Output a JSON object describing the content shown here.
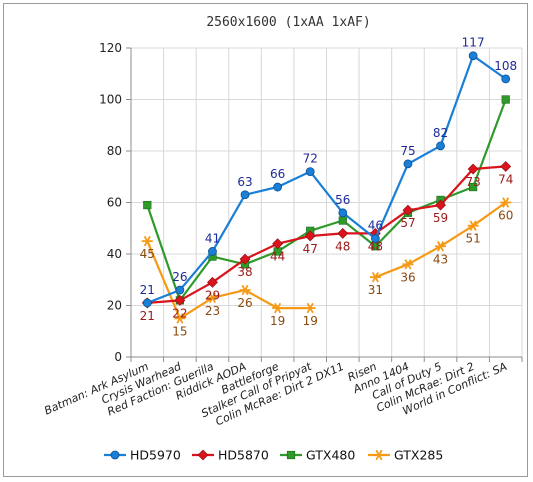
{
  "chart_data": {
    "type": "line",
    "title": "2560x1600 (1xAA 1xAF)",
    "xlabel": "",
    "ylabel": "",
    "ylim": [
      0,
      120
    ],
    "yticks": [
      0,
      20,
      40,
      60,
      80,
      100,
      120
    ],
    "grid": true,
    "legend_position": "bottom",
    "categories": [
      "Batman: Ark Asylum",
      "Crysis Warhead",
      "Red Faction: Guerilla",
      "Riddick AODA",
      "Battleforge",
      "Stalker Call of Pripyat",
      "Colin McRae: Dirt 2 DX11",
      "Risen",
      "Anno 1404",
      "Call of Duty 5",
      "Colin McRae: Dirt 2",
      "World in Conflict: SA"
    ],
    "series": [
      {
        "name": "HD5970",
        "color": "#1a7fd6",
        "marker": "circle",
        "label_color": "#1f2a99",
        "values": [
          21,
          26,
          41,
          63,
          66,
          72,
          56,
          46,
          75,
          82,
          117,
          108
        ],
        "labels": [
          "21",
          "26",
          "41",
          "63",
          "66",
          "72",
          "56",
          "46",
          "75",
          "82",
          "117",
          "108"
        ]
      },
      {
        "name": "HD5870",
        "color": "#d9141c",
        "marker": "diamond",
        "label_color": "#9b1a1a",
        "values": [
          21,
          22,
          29,
          38,
          44,
          47,
          48,
          48,
          57,
          59,
          73,
          74
        ],
        "labels": [
          "21",
          "22",
          "29",
          "38",
          "44",
          "47",
          "48",
          "48",
          "57",
          "59",
          "73",
          "74"
        ]
      },
      {
        "name": "GTX480",
        "color": "#2f9a2a",
        "marker": "square",
        "label_color": "#2f9a2a",
        "values": [
          59,
          22,
          39,
          36,
          41,
          49,
          53,
          43,
          56,
          61,
          66,
          100
        ],
        "labels": []
      },
      {
        "name": "GTX285",
        "color": "#f59a16",
        "marker": "star",
        "label_color": "#8a4a10",
        "values": [
          45,
          15,
          23,
          26,
          19,
          19,
          null,
          31,
          36,
          43,
          51,
          60
        ],
        "labels": [
          "45",
          "15",
          "23",
          "26",
          "19",
          "19",
          "",
          "31",
          "36",
          "43",
          "51",
          "60"
        ]
      }
    ]
  }
}
